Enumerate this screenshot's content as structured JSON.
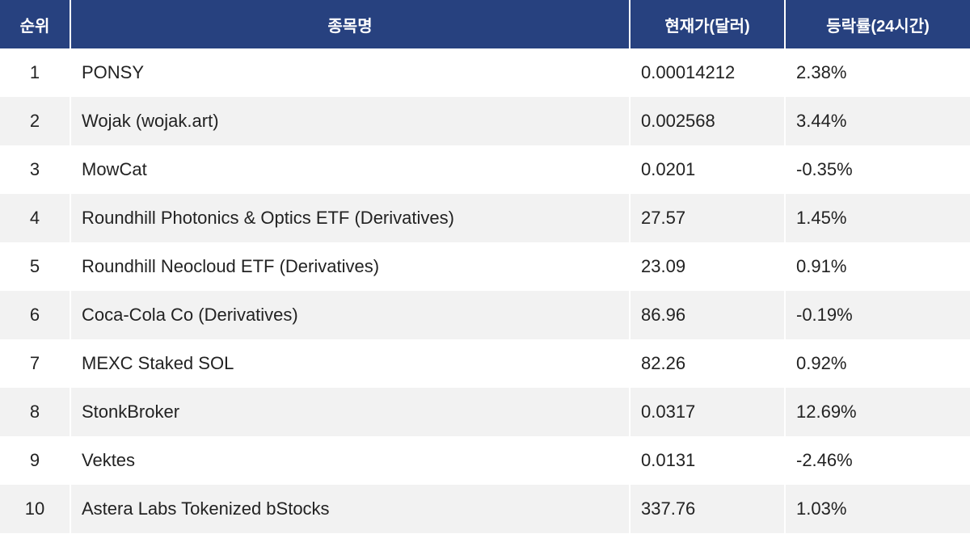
{
  "table": {
    "header": [
      "순위",
      "종목명",
      "현재가(달러)",
      "등락률(24시간)"
    ],
    "rows": [
      [
        "1",
        "PONSY",
        "0.00014212",
        "2.38%"
      ],
      [
        "2",
        "Wojak (wojak.art)",
        "0.002568",
        "3.44%"
      ],
      [
        "3",
        "MowCat",
        "0.0201",
        "-0.35%"
      ],
      [
        "4",
        "Roundhill Photonics & Optics ETF (Derivatives)",
        "27.57",
        "1.45%"
      ],
      [
        "5",
        "Roundhill Neocloud ETF (Derivatives)",
        "23.09",
        "0.91%"
      ],
      [
        "6",
        "Coca-Cola Co (Derivatives)",
        "86.96",
        "-0.19%"
      ],
      [
        "7",
        "MEXC Staked SOL",
        "82.26",
        "0.92%"
      ],
      [
        "8",
        "StonkBroker",
        "0.0317",
        "12.69%"
      ],
      [
        "9",
        "Vektes",
        "0.0131",
        "-2.46%"
      ],
      [
        "10",
        "Astera Labs Tokenized bStocks",
        "337.76",
        "1.03%"
      ]
    ]
  }
}
